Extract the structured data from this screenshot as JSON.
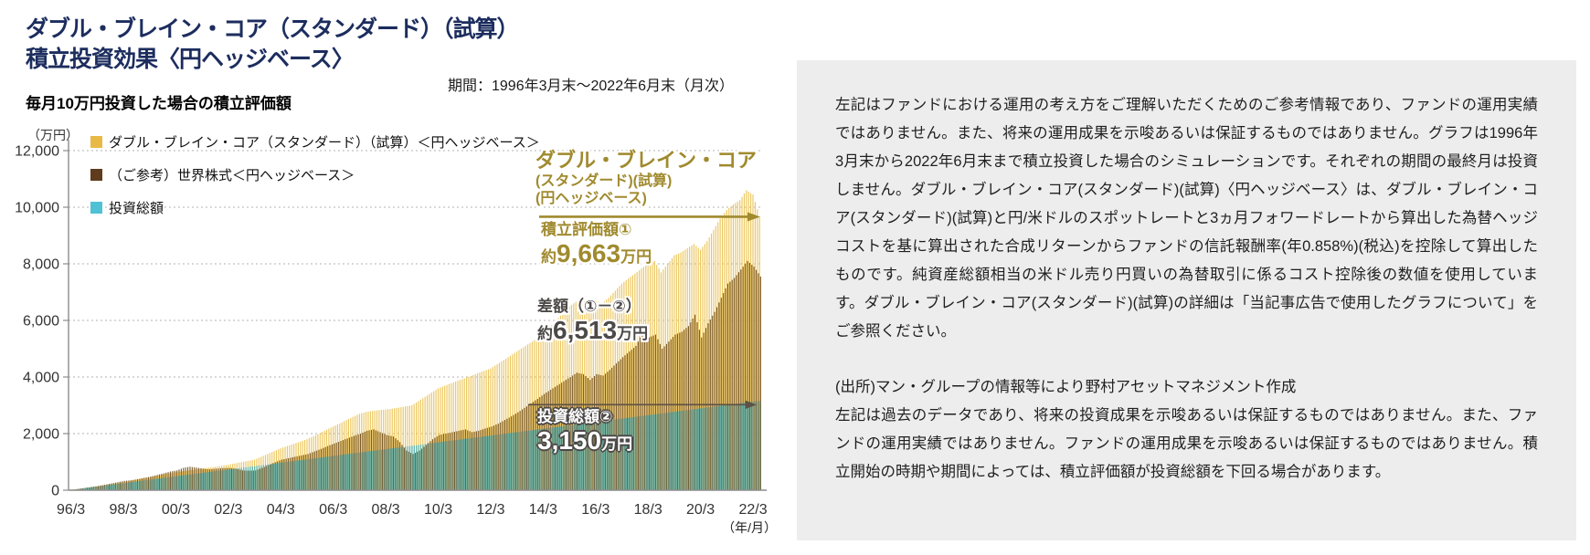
{
  "header": {
    "title_line1": "ダブル・ブレイン・コア（スタンダード）（試算）",
    "title_line2": "積立投資効果〈円ヘッジベース〉",
    "period": "期間：1996年3月末～2022年6月末（月次）",
    "subtitle": "毎月10万円投資した場合の積立評価額"
  },
  "colors": {
    "title_navy": "#1c2d5e",
    "accent_gold": "#a08a2e",
    "annotation_dark": "#4c4948",
    "annotation_light": "#ffffff",
    "grid": "#b3b3b3",
    "axis": "#8c8c8c",
    "panel_bg": "#ededed",
    "arrow_dark": "#5e5145"
  },
  "chart_data": {
    "type": "bar",
    "title": "毎月10万円投資した場合の積立評価額",
    "unit_label": "（万円）",
    "x_axis_unit": "（年/月）",
    "start": "1996/3",
    "end": "2022/6",
    "interval_months": 3,
    "ylim": [
      0,
      12000
    ],
    "grid": true,
    "legend_position": "top-left",
    "y_ticks": [
      0,
      2000,
      4000,
      6000,
      8000,
      10000,
      12000
    ],
    "x_ticks": [
      "96/3",
      "98/3",
      "00/3",
      "02/3",
      "04/3",
      "06/3",
      "08/3",
      "10/3",
      "12/3",
      "14/3",
      "16/3",
      "18/3",
      "20/3",
      "22/3"
    ],
    "series": [
      {
        "name": "ダブル・ブレイン・コア（スタンダード）（試算）＜円ヘッジベース＞",
        "color": "#ecc65c",
        "legend_color": "#e8ba45",
        "final_value": 9663,
        "values": [
          10,
          40,
          75,
          105,
          135,
          170,
          210,
          250,
          290,
          330,
          375,
          420,
          460,
          505,
          550,
          595,
          640,
          670,
          700,
          730,
          760,
          795,
          830,
          865,
          900,
          945,
          990,
          1035,
          1080,
          1180,
          1280,
          1380,
          1480,
          1560,
          1640,
          1720,
          1800,
          1910,
          2020,
          2140,
          2250,
          2360,
          2480,
          2590,
          2700,
          2760,
          2800,
          2830,
          2850,
          2880,
          2920,
          2960,
          3000,
          3150,
          3300,
          3450,
          3600,
          3690,
          3780,
          3870,
          3950,
          4040,
          4130,
          4220,
          4300,
          4450,
          4600,
          4750,
          4900,
          5050,
          5200,
          5350,
          5500,
          5750,
          6000,
          6250,
          6500,
          6650,
          6750,
          6550,
          6700,
          6600,
          6800,
          7050,
          7300,
          7480,
          7650,
          7830,
          8000,
          8100,
          7700,
          8000,
          8300,
          8400,
          8550,
          8700,
          8500,
          8800,
          9200,
          9600,
          9900,
          10100,
          10250,
          10600,
          10450,
          9663
        ]
      },
      {
        "name": "（ご参考）世界株式＜円ヘッジベース＞",
        "color": "#7d5c2e",
        "legend_color": "#5f3c1d",
        "values": [
          10,
          45,
          80,
          115,
          150,
          195,
          240,
          285,
          330,
          350,
          390,
          435,
          480,
          540,
          600,
          660,
          700,
          790,
          830,
          800,
          760,
          740,
          760,
          780,
          790,
          760,
          700,
          690,
          700,
          790,
          890,
          990,
          1080,
          1130,
          1180,
          1230,
          1280,
          1370,
          1460,
          1560,
          1650,
          1740,
          1830,
          1920,
          2000,
          2100,
          2150,
          2050,
          1950,
          1900,
          1700,
          1400,
          1280,
          1400,
          1600,
          1800,
          1950,
          2000,
          2050,
          2100,
          2150,
          2050,
          2100,
          2180,
          2250,
          2350,
          2480,
          2610,
          2750,
          2910,
          3070,
          3230,
          3400,
          3550,
          3700,
          3850,
          4000,
          4150,
          4100,
          3900,
          4100,
          4050,
          4250,
          4480,
          4700,
          4900,
          5100,
          5550,
          5400,
          5500,
          5000,
          5250,
          5500,
          5600,
          5800,
          6200,
          5400,
          5900,
          6300,
          6800,
          7300,
          7500,
          7800,
          8100,
          7900,
          7550
        ]
      },
      {
        "name": "投資総額",
        "color": "#45b0ba",
        "legend_color": "#4fc1d4",
        "final_value": 3150,
        "values": [
          10,
          40,
          70,
          100,
          130,
          160,
          190,
          220,
          250,
          280,
          310,
          340,
          370,
          400,
          430,
          460,
          490,
          520,
          550,
          580,
          610,
          640,
          670,
          700,
          730,
          760,
          790,
          820,
          850,
          880,
          910,
          940,
          970,
          1000,
          1030,
          1060,
          1090,
          1120,
          1150,
          1180,
          1210,
          1240,
          1270,
          1300,
          1330,
          1360,
          1390,
          1420,
          1450,
          1480,
          1510,
          1540,
          1570,
          1600,
          1630,
          1660,
          1690,
          1720,
          1750,
          1780,
          1810,
          1840,
          1870,
          1900,
          1930,
          1960,
          1990,
          2020,
          2050,
          2080,
          2110,
          2140,
          2170,
          2200,
          2230,
          2260,
          2290,
          2320,
          2350,
          2380,
          2410,
          2440,
          2470,
          2500,
          2530,
          2560,
          2590,
          2620,
          2650,
          2680,
          2710,
          2740,
          2770,
          2800,
          2830,
          2860,
          2890,
          2920,
          2950,
          2980,
          3010,
          3040,
          3070,
          3100,
          3130,
          3150
        ]
      }
    ]
  },
  "annotations": {
    "fund_label_line1": "ダブル・ブレイン・コア",
    "fund_label_line2": "(スタンダード)(試算)",
    "fund_label_line3": "(円ヘッジベース)",
    "valuation_label": "積立評価額①",
    "valuation_approx": "約",
    "valuation_value": "9,663",
    "valuation_unit": "万円",
    "difference_label": "差額（①－②）",
    "difference_approx": "約",
    "difference_value": "6,513",
    "difference_unit": "万円",
    "investment_label": "投資総額②",
    "investment_value": "3,150",
    "investment_unit": "万円"
  },
  "disclaimer": {
    "paragraph1": "左記はファンドにおける運用の考え方をご理解いただくためのご参考情報であり、ファンドの運用実績ではありません。また、将来の運用成果を示唆あるいは保証するものではありません。グラフは1996年3月末から2022年6月末まで積立投資した場合のシミュレーションです。それぞれの期間の最終月は投資しません。ダブル・ブレイン・コア(スタンダード)(試算)〈円ヘッジベース〉は、ダブル・ブレイン・コア(スタンダード)(試算)と円/米ドルのスポットレートと3ヵ月フォワードレートから算出した為替ヘッジコストを基に算出された合成リターンからファンドの信託報酬率(年0.858%)(税込)を控除して算出したものです。純資産総額相当の米ドル売り円買いの為替取引に係るコスト控除後の数値を使用しています。ダブル・ブレイン・コア(スタンダード)(試算)の詳細は「当記事広告で使用したグラフについて」をご参照ください。",
    "source_line": "(出所)マン・グループの情報等により野村アセットマネジメント作成",
    "paragraph2": "左記は過去のデータであり、将来の投資成果を示唆あるいは保証するものではありません。また、ファンドの運用実績ではありません。ファンドの運用成果を示唆あるいは保証するものではありません。積立開始の時期や期間によっては、積立評価額が投資総額を下回る場合があります。"
  }
}
